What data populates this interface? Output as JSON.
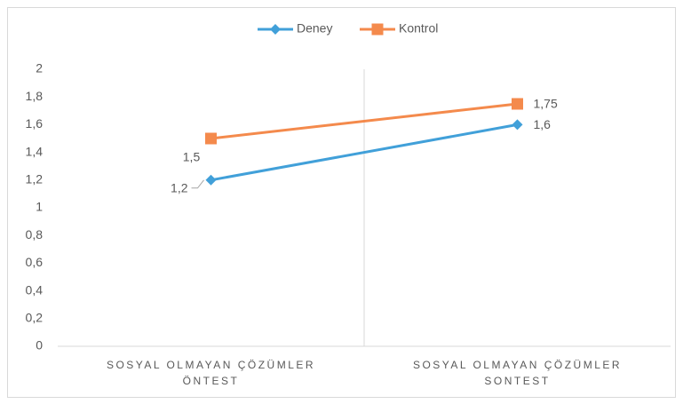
{
  "chart_data": {
    "type": "line",
    "categories": [
      "SOSYAL OLMAYAN ÇÖZÜMLER ÖNTEST",
      "SOSYAL OLMAYAN ÇÖZÜMLER SONTEST"
    ],
    "series": [
      {
        "name": "Deney",
        "color": "#41a0d9",
        "marker": "diamond",
        "values": [
          1.2,
          1.6
        ],
        "value_labels": [
          "1,2",
          "1,6"
        ]
      },
      {
        "name": "Kontrol",
        "color": "#f48a4c",
        "marker": "square",
        "values": [
          1.5,
          1.75
        ],
        "value_labels": [
          "1,5",
          "1,75"
        ]
      }
    ],
    "ylim": [
      0,
      2
    ],
    "yticks": [
      0,
      {
        "value": 0.2,
        "label": "0,2"
      },
      {
        "value": 0.4,
        "label": "0,4"
      },
      {
        "value": 0.6,
        "label": "0,6"
      },
      {
        "value": 0.8,
        "label": "0,8"
      },
      1,
      {
        "value": 1.2,
        "label": "1,2"
      },
      {
        "value": 1.4,
        "label": "1,4"
      },
      {
        "value": 1.6,
        "label": "1,6"
      },
      {
        "value": 1.8,
        "label": "1,8"
      },
      2
    ],
    "legend": "top",
    "grid": false
  }
}
